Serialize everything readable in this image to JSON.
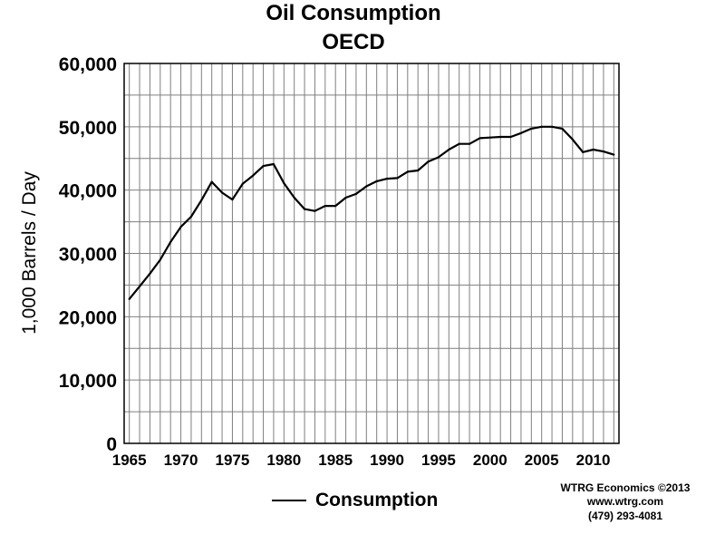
{
  "chart_data": {
    "type": "line",
    "title": "Oil Consumption",
    "subtitle": "OECD",
    "ylabel": "1,000 Barrels / Day",
    "xlabel": "",
    "xlim": [
      1964.5,
      2012.5
    ],
    "ylim": [
      0,
      60000
    ],
    "grid": true,
    "legend_position": "bottom-center",
    "x_ticks": [
      1965,
      1970,
      1975,
      1980,
      1985,
      1990,
      1995,
      2000,
      2005,
      2010
    ],
    "y_ticks": [
      0,
      10000,
      20000,
      30000,
      40000,
      50000,
      60000
    ],
    "y_tick_labels": [
      "0",
      "10,000",
      "20,000",
      "30,000",
      "40,000",
      "50,000",
      "60,000"
    ],
    "series": [
      {
        "name": "Consumption",
        "color": "#000000",
        "x": [
          1965,
          1966,
          1967,
          1968,
          1969,
          1970,
          1971,
          1972,
          1973,
          1974,
          1975,
          1976,
          1977,
          1978,
          1979,
          1980,
          1981,
          1982,
          1983,
          1984,
          1985,
          1986,
          1987,
          1988,
          1989,
          1990,
          1991,
          1992,
          1993,
          1994,
          1995,
          1996,
          1997,
          1998,
          1999,
          2000,
          2001,
          2002,
          2003,
          2004,
          2005,
          2006,
          2007,
          2008,
          2009,
          2010,
          2011,
          2012
        ],
        "values": [
          22800,
          24800,
          26800,
          29000,
          31800,
          34200,
          35800,
          38400,
          41300,
          39600,
          38500,
          41000,
          42300,
          43800,
          44100,
          41100,
          38800,
          37000,
          36700,
          37500,
          37500,
          38800,
          39400,
          40600,
          41400,
          41800,
          41900,
          42900,
          43100,
          44500,
          45200,
          46400,
          47300,
          47300,
          48200,
          48300,
          48400,
          48400,
          49000,
          49700,
          50000,
          50000,
          49700,
          48000,
          46000,
          46400,
          46100,
          45600
        ]
      }
    ]
  },
  "credit": {
    "line1": "WTRG Economics  ©2013",
    "line2": "www.wtrg.com",
    "line3": "(479) 293-4081"
  }
}
